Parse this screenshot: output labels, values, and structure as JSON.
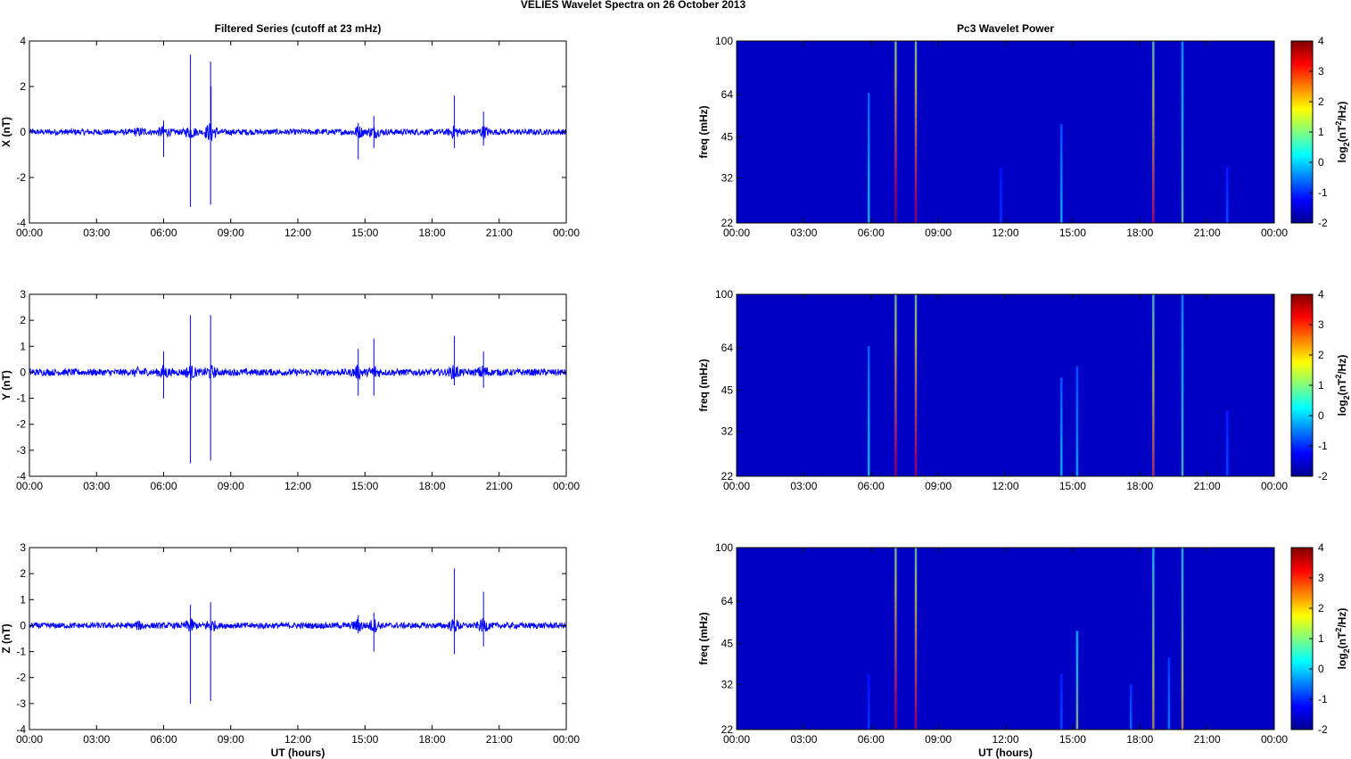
{
  "figure_title": "VELIES Wavelet Spectra on 26 October   2013",
  "left_title": "Filtered Series (cutoff at 23 mHz)",
  "right_title": "Pc3 Wavelet Power",
  "x_axis_label": "UT (hours)",
  "colors": {
    "trace": "#0000ff",
    "background": "#00008f"
  },
  "chart_data": [
    {
      "type": "line",
      "title": "Filtered Series (cutoff at 23 mHz)",
      "ylabel": "X (nT)",
      "xlabel": "",
      "x_unit": "UT hour",
      "xlim": [
        0,
        24
      ],
      "ylim": [
        -4,
        4
      ],
      "xtick_labels": [
        "00:00",
        "03:00",
        "06:00",
        "09:00",
        "12:00",
        "15:00",
        "18:00",
        "21:00",
        "00:00"
      ],
      "ytick_labels": [
        "-4",
        "-2",
        "0",
        "2",
        "4"
      ],
      "baseline_noise_nT": 0.08,
      "spikes": [
        {
          "t": 6.0,
          "max": 0.5,
          "min": -1.1
        },
        {
          "t": 7.2,
          "max": 3.4,
          "min": -3.3
        },
        {
          "t": 8.1,
          "max": 3.1,
          "min": -3.2
        },
        {
          "t": 8.12,
          "max": 2.0,
          "min": -0.3
        },
        {
          "t": 14.7,
          "max": 0.4,
          "min": -1.2
        },
        {
          "t": 15.4,
          "max": 0.7,
          "min": -0.7
        },
        {
          "t": 19.0,
          "max": 1.6,
          "min": -0.7
        },
        {
          "t": 20.3,
          "max": 0.9,
          "min": -0.6
        }
      ],
      "grid": false
    },
    {
      "type": "heatmap",
      "title": "Pc3 Wavelet Power",
      "ylabel": "freq (mHz)",
      "xlabel": "",
      "xlim": [
        0,
        24
      ],
      "ylim": [
        22,
        100
      ],
      "y_scale": "log",
      "xtick_labels": [
        "00:00",
        "03:00",
        "06:00",
        "09:00",
        "12:00",
        "15:00",
        "18:00",
        "21:00",
        "00:00"
      ],
      "ytick_values": [
        22,
        32,
        45,
        64,
        100
      ],
      "ytick_labels": [
        "22",
        "32",
        "45",
        "64",
        "100"
      ],
      "colorbar_label": "log2(nT2/Hz)",
      "colorbar_ticks": [
        "-2",
        "-1",
        "0",
        "1",
        "2",
        "3",
        "4"
      ],
      "clim": [
        -2,
        4
      ],
      "background_level": -1.6,
      "features": [
        {
          "t": 5.9,
          "f_low": 22,
          "f_high": 65,
          "peak": 0.5
        },
        {
          "t": 7.1,
          "f_low": 22,
          "f_high": 100,
          "peak": 3.8
        },
        {
          "t": 8.0,
          "f_low": 22,
          "f_high": 100,
          "peak": 3.6
        },
        {
          "t": 11.8,
          "f_low": 22,
          "f_high": 35,
          "peak": -0.8
        },
        {
          "t": 14.5,
          "f_low": 22,
          "f_high": 50,
          "peak": 0.3
        },
        {
          "t": 18.6,
          "f_low": 22,
          "f_high": 100,
          "peak": 3.2
        },
        {
          "t": 19.9,
          "f_low": 22,
          "f_high": 100,
          "peak": 1.2
        },
        {
          "t": 21.9,
          "f_low": 22,
          "f_high": 35,
          "peak": -0.6
        }
      ]
    },
    {
      "type": "line",
      "title": "",
      "ylabel": "Y (nT)",
      "xlabel": "",
      "xlim": [
        0,
        24
      ],
      "ylim": [
        -4,
        3
      ],
      "xtick_labels": [
        "00:00",
        "03:00",
        "06:00",
        "09:00",
        "12:00",
        "15:00",
        "18:00",
        "21:00",
        "00:00"
      ],
      "ytick_labels": [
        "-4",
        "-3",
        "-2",
        "-1",
        "0",
        "1",
        "2",
        "3"
      ],
      "baseline_noise_nT": 0.08,
      "spikes": [
        {
          "t": 6.0,
          "max": 0.8,
          "min": -1.0
        },
        {
          "t": 7.2,
          "max": 2.2,
          "min": -3.5
        },
        {
          "t": 8.1,
          "max": 2.2,
          "min": -3.4
        },
        {
          "t": 14.7,
          "max": 0.9,
          "min": -0.9
        },
        {
          "t": 15.4,
          "max": 1.3,
          "min": -0.9
        },
        {
          "t": 19.0,
          "max": 1.4,
          "min": -0.5
        },
        {
          "t": 20.3,
          "max": 0.8,
          "min": -0.6
        }
      ],
      "grid": false
    },
    {
      "type": "heatmap",
      "title": "",
      "ylabel": "freq (mHz)",
      "xlabel": "",
      "xlim": [
        0,
        24
      ],
      "ylim": [
        22,
        100
      ],
      "y_scale": "log",
      "xtick_labels": [
        "00:00",
        "03:00",
        "06:00",
        "09:00",
        "12:00",
        "15:00",
        "18:00",
        "21:00",
        "00:00"
      ],
      "ytick_values": [
        22,
        32,
        45,
        64,
        100
      ],
      "ytick_labels": [
        "22",
        "32",
        "45",
        "64",
        "100"
      ],
      "colorbar_label": "log2(nT2/Hz)",
      "colorbar_ticks": [
        "-2",
        "-1",
        "0",
        "1",
        "2",
        "3",
        "4"
      ],
      "clim": [
        -2,
        4
      ],
      "background_level": -1.6,
      "features": [
        {
          "t": 5.9,
          "f_low": 22,
          "f_high": 65,
          "peak": 0.5
        },
        {
          "t": 7.1,
          "f_low": 22,
          "f_high": 100,
          "peak": 3.5
        },
        {
          "t": 8.0,
          "f_low": 22,
          "f_high": 100,
          "peak": 3.5
        },
        {
          "t": 14.5,
          "f_low": 22,
          "f_high": 50,
          "peak": 0.4
        },
        {
          "t": 15.2,
          "f_low": 22,
          "f_high": 55,
          "peak": 0.2
        },
        {
          "t": 18.6,
          "f_low": 22,
          "f_high": 100,
          "peak": 2.8
        },
        {
          "t": 19.9,
          "f_low": 22,
          "f_high": 100,
          "peak": 1.0
        },
        {
          "t": 21.9,
          "f_low": 22,
          "f_high": 38,
          "peak": -0.6
        }
      ]
    },
    {
      "type": "line",
      "title": "",
      "ylabel": "Z (nT)",
      "xlabel": "UT (hours)",
      "xlim": [
        0,
        24
      ],
      "ylim": [
        -4,
        3
      ],
      "xtick_labels": [
        "00:00",
        "03:00",
        "06:00",
        "09:00",
        "12:00",
        "15:00",
        "18:00",
        "21:00",
        "00:00"
      ],
      "ytick_labels": [
        "-4",
        "-3",
        "-2",
        "-1",
        "0",
        "1",
        "2",
        "3"
      ],
      "baseline_noise_nT": 0.07,
      "spikes": [
        {
          "t": 7.2,
          "max": 0.8,
          "min": -3.0
        },
        {
          "t": 8.1,
          "max": 0.9,
          "min": -2.9
        },
        {
          "t": 14.7,
          "max": 0.4,
          "min": -0.3
        },
        {
          "t": 15.4,
          "max": 0.5,
          "min": -1.0
        },
        {
          "t": 19.0,
          "max": 2.2,
          "min": -1.1
        },
        {
          "t": 20.3,
          "max": 1.3,
          "min": -0.8
        }
      ],
      "grid": false
    },
    {
      "type": "heatmap",
      "title": "",
      "ylabel": "freq (mHz)",
      "xlabel": "UT (hours)",
      "xlim": [
        0,
        24
      ],
      "ylim": [
        22,
        100
      ],
      "y_scale": "log",
      "xtick_labels": [
        "00:00",
        "03:00",
        "06:00",
        "09:00",
        "12:00",
        "15:00",
        "18:00",
        "21:00",
        "00:00"
      ],
      "ytick_values": [
        22,
        32,
        45,
        64,
        100
      ],
      "ytick_labels": [
        "22",
        "32",
        "45",
        "64",
        "100"
      ],
      "colorbar_label": "log2(nT2/Hz)",
      "colorbar_ticks": [
        "-2",
        "-1",
        "0",
        "1",
        "2",
        "3",
        "4"
      ],
      "clim": [
        -2,
        4
      ],
      "background_level": -1.6,
      "features": [
        {
          "t": 5.9,
          "f_low": 22,
          "f_high": 35,
          "peak": -0.8
        },
        {
          "t": 7.1,
          "f_low": 22,
          "f_high": 100,
          "peak": 3.6
        },
        {
          "t": 8.0,
          "f_low": 22,
          "f_high": 100,
          "peak": 3.4
        },
        {
          "t": 14.5,
          "f_low": 22,
          "f_high": 35,
          "peak": -0.6
        },
        {
          "t": 15.2,
          "f_low": 22,
          "f_high": 50,
          "peak": 1.5
        },
        {
          "t": 17.6,
          "f_low": 22,
          "f_high": 32,
          "peak": -0.3
        },
        {
          "t": 18.6,
          "f_low": 22,
          "f_high": 100,
          "peak": 2.2
        },
        {
          "t": 19.3,
          "f_low": 22,
          "f_high": 40,
          "peak": -0.2
        },
        {
          "t": 19.9,
          "f_low": 22,
          "f_high": 100,
          "peak": 2.2
        }
      ]
    }
  ]
}
